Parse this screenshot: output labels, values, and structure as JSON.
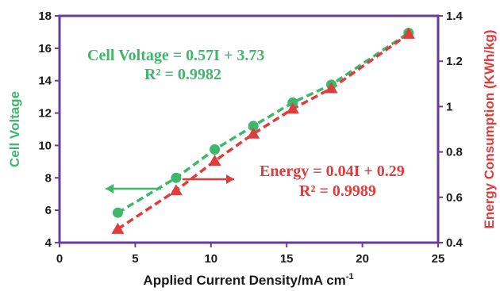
{
  "chart_data": {
    "type": "scatter",
    "xlabel": "Applied Current Density/mA cm",
    "xlabel_sup": "-1",
    "y_left_label": "Cell Voltage",
    "y_right_label": "Energy Consumption (KWh/kg)",
    "xlim": [
      0,
      25
    ],
    "x_ticks": [
      0,
      5,
      10,
      15,
      20,
      25
    ],
    "y_left_lim": [
      4,
      18
    ],
    "y_left_ticks": [
      4,
      6,
      8,
      10,
      12,
      14,
      16,
      18
    ],
    "y_right_lim": [
      0.4,
      1.4
    ],
    "y_right_ticks": [
      0.4,
      0.6,
      0.8,
      1,
      1.2,
      1.4
    ],
    "grid": false,
    "series": [
      {
        "axis": "left",
        "marker": "circle",
        "color": "#3db86b",
        "x": [
          3.85,
          7.7,
          10.25,
          12.8,
          15.4,
          17.95,
          23.05
        ],
        "y": [
          5.85,
          8.0,
          9.75,
          11.2,
          12.65,
          13.75,
          16.95
        ],
        "equation": "Cell Voltage = 0.57I + 3.73",
        "r2": "R² = 0.9982",
        "arrow_direction": "left"
      },
      {
        "axis": "right",
        "marker": "triangle",
        "color": "#e03c3c",
        "x": [
          3.85,
          7.7,
          10.25,
          12.8,
          15.4,
          17.95,
          23.05
        ],
        "y": [
          0.46,
          0.63,
          0.76,
          0.88,
          0.99,
          1.08,
          1.32
        ],
        "equation": "Energy = 0.04I + 0.29",
        "r2": "R² = 0.9989",
        "arrow_direction": "right"
      }
    ]
  },
  "colors": {
    "frame": "#6a3a9c",
    "voltage": "#3db86b",
    "energy": "#e03c3c",
    "text": "#1a1a1a"
  }
}
